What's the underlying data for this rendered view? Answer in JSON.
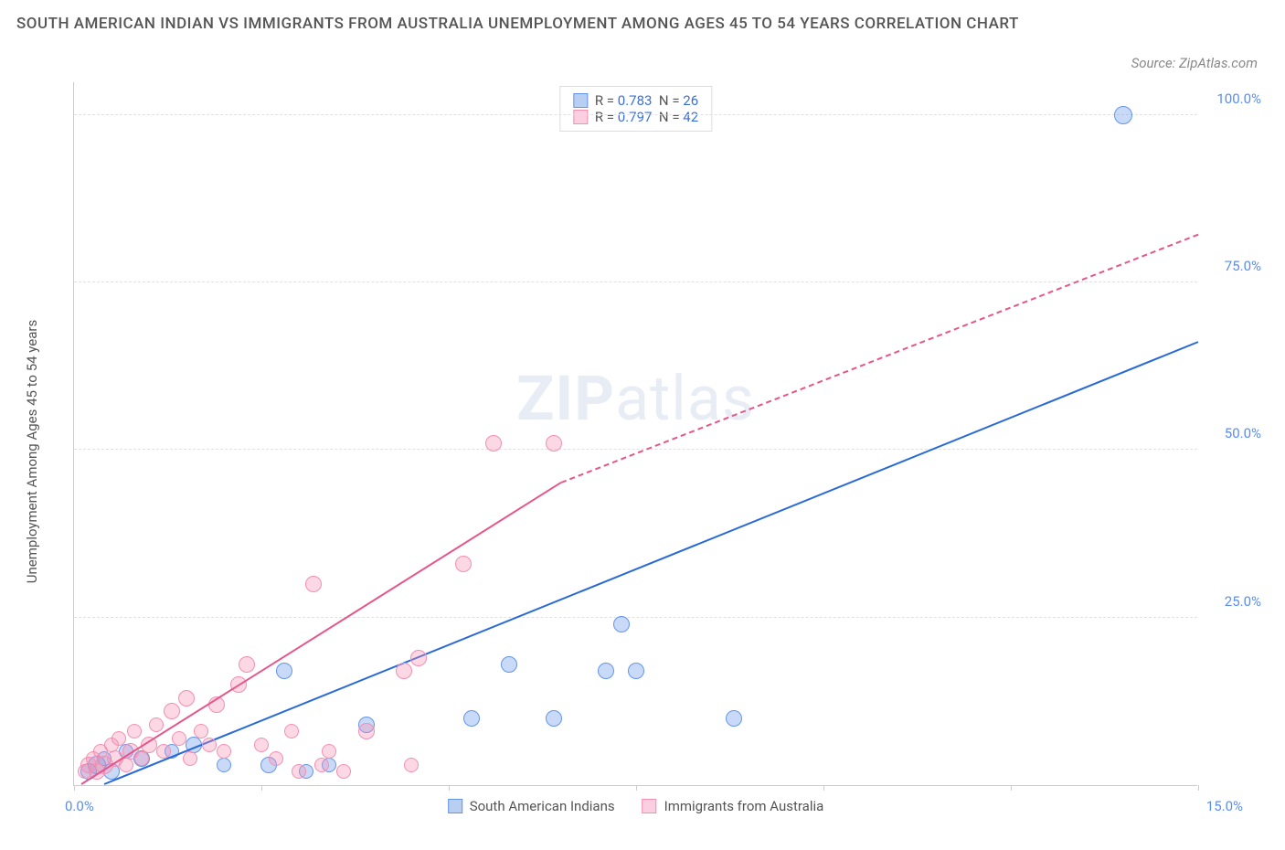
{
  "title": "SOUTH AMERICAN INDIAN VS IMMIGRANTS FROM AUSTRALIA UNEMPLOYMENT AMONG AGES 45 TO 54 YEARS CORRELATION CHART",
  "source": "Source: ZipAtlas.com",
  "watermark": {
    "bold": "ZIP",
    "rest": "atlas"
  },
  "chart": {
    "type": "scatter",
    "y_axis_label": "Unemployment Among Ages 45 to 54 years",
    "xlim": [
      0,
      15
    ],
    "ylim": [
      0,
      105
    ],
    "x_ticks": [
      0,
      2.5,
      5,
      7.5,
      10,
      12.5,
      15
    ],
    "x_tick_labels": {
      "0": "0.0%",
      "15": "15.0%"
    },
    "y_gridlines": [
      25,
      50,
      75,
      100
    ],
    "y_tick_labels": {
      "25": "25.0%",
      "50": "50.0%",
      "75": "75.0%",
      "100": "100.0%"
    },
    "axis_label_color": "#5b8def",
    "grid_color": "#e0e0e0",
    "background_color": "#ffffff",
    "series": [
      {
        "name": "South American Indians",
        "color_fill": "rgba(100, 150, 237, 0.35)",
        "color_stroke": "#6495ed",
        "swatch_fill": "#b9cff2",
        "R": "0.783",
        "N": "26",
        "trend_color": "#2a6ad6",
        "trend_start": {
          "x": 0.4,
          "y": 0
        },
        "trend_end": {
          "x": 15,
          "y": 66
        },
        "points": [
          {
            "x": 0.2,
            "y": 2,
            "r": 9
          },
          {
            "x": 0.3,
            "y": 3,
            "r": 10
          },
          {
            "x": 0.4,
            "y": 4,
            "r": 8
          },
          {
            "x": 0.5,
            "y": 2,
            "r": 9
          },
          {
            "x": 0.7,
            "y": 5,
            "r": 8
          },
          {
            "x": 0.9,
            "y": 4,
            "r": 9
          },
          {
            "x": 1.3,
            "y": 5,
            "r": 8
          },
          {
            "x": 1.6,
            "y": 6,
            "r": 9
          },
          {
            "x": 2.0,
            "y": 3,
            "r": 8
          },
          {
            "x": 2.6,
            "y": 3,
            "r": 9
          },
          {
            "x": 2.8,
            "y": 17,
            "r": 9
          },
          {
            "x": 3.1,
            "y": 2,
            "r": 8
          },
          {
            "x": 3.4,
            "y": 3,
            "r": 8
          },
          {
            "x": 3.9,
            "y": 9,
            "r": 9
          },
          {
            "x": 5.3,
            "y": 10,
            "r": 9
          },
          {
            "x": 5.8,
            "y": 18,
            "r": 9
          },
          {
            "x": 6.4,
            "y": 10,
            "r": 9
          },
          {
            "x": 7.1,
            "y": 17,
            "r": 9
          },
          {
            "x": 7.3,
            "y": 24,
            "r": 9
          },
          {
            "x": 7.5,
            "y": 17,
            "r": 9
          },
          {
            "x": 8.8,
            "y": 10,
            "r": 9
          },
          {
            "x": 14.0,
            "y": 100,
            "r": 10
          }
        ]
      },
      {
        "name": "Immigrants from Australia",
        "color_fill": "rgba(244, 143, 177, 0.35)",
        "color_stroke": "#f48fb1",
        "swatch_fill": "#fbcfe0",
        "R": "0.797",
        "N": "42",
        "trend_color": "#e5568b",
        "trend_solid_end": {
          "x": 6.5,
          "y": 45
        },
        "trend_start": {
          "x": 0.1,
          "y": 0
        },
        "trend_end": {
          "x": 15,
          "y": 82
        },
        "points": [
          {
            "x": 0.15,
            "y": 2,
            "r": 8
          },
          {
            "x": 0.2,
            "y": 3,
            "r": 9
          },
          {
            "x": 0.25,
            "y": 4,
            "r": 8
          },
          {
            "x": 0.3,
            "y": 2,
            "r": 9
          },
          {
            "x": 0.35,
            "y": 5,
            "r": 8
          },
          {
            "x": 0.4,
            "y": 3,
            "r": 10
          },
          {
            "x": 0.5,
            "y": 6,
            "r": 8
          },
          {
            "x": 0.55,
            "y": 4,
            "r": 9
          },
          {
            "x": 0.6,
            "y": 7,
            "r": 8
          },
          {
            "x": 0.7,
            "y": 3,
            "r": 8
          },
          {
            "x": 0.75,
            "y": 5,
            "r": 9
          },
          {
            "x": 0.8,
            "y": 8,
            "r": 8
          },
          {
            "x": 0.9,
            "y": 4,
            "r": 8
          },
          {
            "x": 1.0,
            "y": 6,
            "r": 9
          },
          {
            "x": 1.1,
            "y": 9,
            "r": 8
          },
          {
            "x": 1.2,
            "y": 5,
            "r": 8
          },
          {
            "x": 1.3,
            "y": 11,
            "r": 9
          },
          {
            "x": 1.4,
            "y": 7,
            "r": 8
          },
          {
            "x": 1.5,
            "y": 13,
            "r": 9
          },
          {
            "x": 1.55,
            "y": 4,
            "r": 8
          },
          {
            "x": 1.7,
            "y": 8,
            "r": 8
          },
          {
            "x": 1.8,
            "y": 6,
            "r": 8
          },
          {
            "x": 1.9,
            "y": 12,
            "r": 9
          },
          {
            "x": 2.0,
            "y": 5,
            "r": 8
          },
          {
            "x": 2.2,
            "y": 15,
            "r": 9
          },
          {
            "x": 2.3,
            "y": 18,
            "r": 9
          },
          {
            "x": 2.5,
            "y": 6,
            "r": 8
          },
          {
            "x": 2.7,
            "y": 4,
            "r": 8
          },
          {
            "x": 2.9,
            "y": 8,
            "r": 8
          },
          {
            "x": 3.0,
            "y": 2,
            "r": 8
          },
          {
            "x": 3.2,
            "y": 30,
            "r": 9
          },
          {
            "x": 3.3,
            "y": 3,
            "r": 8
          },
          {
            "x": 3.4,
            "y": 5,
            "r": 8
          },
          {
            "x": 3.6,
            "y": 2,
            "r": 8
          },
          {
            "x": 3.9,
            "y": 8,
            "r": 9
          },
          {
            "x": 4.4,
            "y": 17,
            "r": 9
          },
          {
            "x": 4.5,
            "y": 3,
            "r": 8
          },
          {
            "x": 4.6,
            "y": 19,
            "r": 9
          },
          {
            "x": 5.2,
            "y": 33,
            "r": 9
          },
          {
            "x": 5.6,
            "y": 51,
            "r": 9
          },
          {
            "x": 6.4,
            "y": 51,
            "r": 9
          }
        ]
      }
    ]
  }
}
